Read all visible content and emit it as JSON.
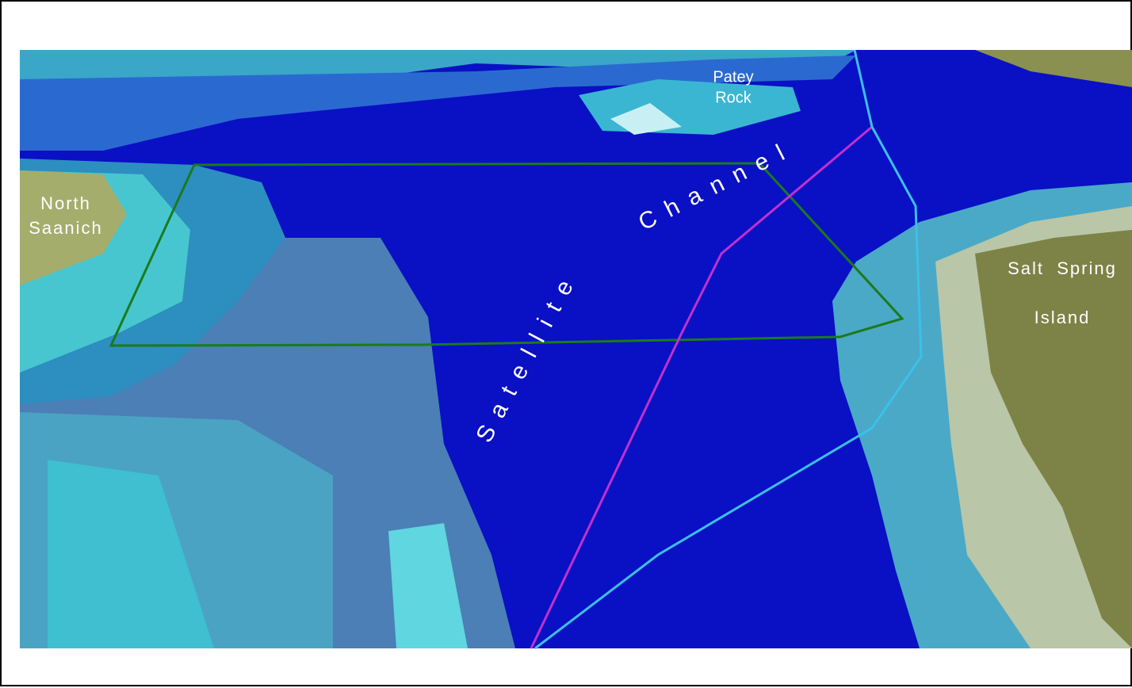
{
  "places": [
    {
      "lines": [
        "North",
        "Saanich"
      ]
    },
    {
      "lines": [
        "Patey",
        "Rock"
      ]
    },
    {
      "lines": [
        "Salt  Spring",
        "Island"
      ]
    }
  ],
  "channel_name": [
    "Satellite",
    "Channel"
  ]
}
